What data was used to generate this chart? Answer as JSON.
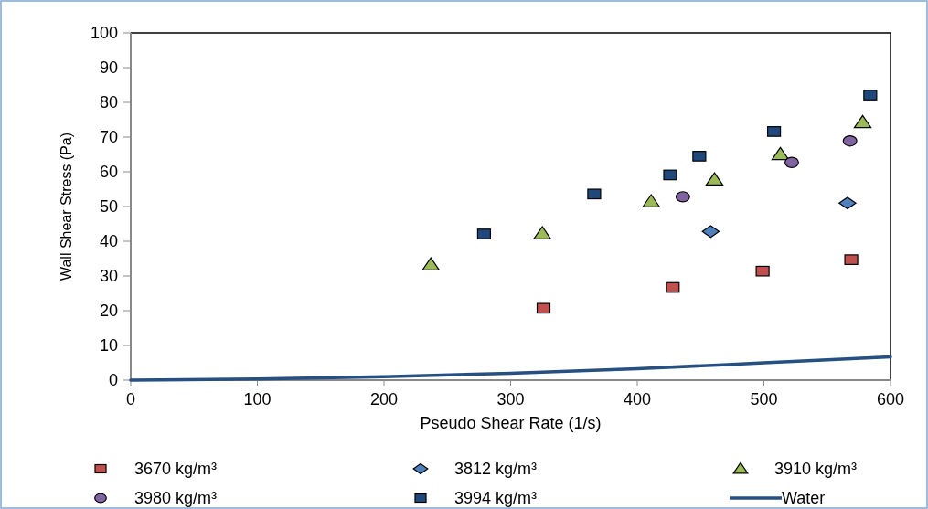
{
  "chart_data": {
    "type": "scatter",
    "xlabel": "Pseudo Shear Rate (1/s)",
    "ylabel": "Wall Shear Stress (Pa)",
    "xlim": [
      0,
      600
    ],
    "xticks": [
      0,
      100,
      200,
      300,
      400,
      500,
      600
    ],
    "ylim": [
      0,
      100
    ],
    "yticks": [
      0,
      10,
      20,
      30,
      40,
      50,
      60,
      70,
      80,
      90,
      100
    ],
    "grid": false,
    "legend": "bottom",
    "series": [
      {
        "name": "3670 kg/m³",
        "color": "#c0504d",
        "marker": "square",
        "x": [
          326,
          428,
          499,
          569
        ],
        "values": [
          20.7,
          26.7,
          31.4,
          34.7
        ]
      },
      {
        "name": "3812 kg/m³",
        "color": "#4f81bd",
        "marker": "diamond",
        "x": [
          458,
          566
        ],
        "values": [
          42.8,
          51
        ]
      },
      {
        "name": "3910 kg/m³",
        "color": "#9bbb59",
        "marker": "triangle",
        "x": [
          237,
          325,
          411,
          461,
          513,
          578
        ],
        "values": [
          33.2,
          42.2,
          51.4,
          57.7,
          65,
          74.2
        ]
      },
      {
        "name": "3980 kg/m³",
        "color": "#8064a2",
        "marker": "circle",
        "x": [
          436,
          522,
          568
        ],
        "values": [
          52.8,
          62.7,
          68.9
        ]
      },
      {
        "name": "3994 kg/m³",
        "color": "#1f497d",
        "marker": "square",
        "x": [
          279,
          366,
          426,
          449,
          508,
          584
        ],
        "values": [
          42.1,
          53.6,
          59.1,
          64.5,
          71.6,
          82.1
        ]
      },
      {
        "name": "Water",
        "type": "line",
        "color": "#264f82",
        "marker": "none",
        "line_style": "solid",
        "x": [
          0,
          100,
          200,
          300,
          400,
          500,
          600
        ],
        "values": [
          0,
          0.3,
          1,
          2,
          3.3,
          5,
          6.7
        ]
      }
    ]
  }
}
